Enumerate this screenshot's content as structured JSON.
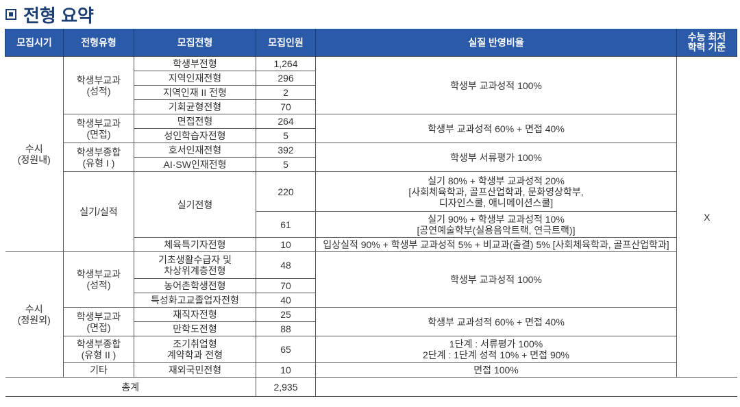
{
  "title": "전형 요약",
  "headers": [
    "모집시기",
    "전형유형",
    "모집전형",
    "모집인원",
    "실질 반영비율",
    "수능 최저\n학력 기준"
  ],
  "suneung": "X",
  "rows": {
    "p1": "수시\n(정원내)",
    "p2": "수시\n(정원외)",
    "t1": "학생부교과\n(성적)",
    "t2": "학생부교과\n(면접)",
    "t3": "학생부종합\n(유형 I )",
    "t4": "실기/실적",
    "t5": "학생부교과\n(성적)",
    "t6": "학생부교과\n(면접)",
    "t7": "학생부종합\n(유형 II )",
    "t8": "기타",
    "n1": "학생부전형",
    "c1": "1,264",
    "n2": "지역인재전형",
    "c2": "296",
    "n3": "지역인재 II 전형",
    "c3": "2",
    "n4": "기회균형전형",
    "c4": "70",
    "r1": "학생부 교과성적 100%",
    "n5": "면접전형",
    "c5": "264",
    "n6": "성인학습자전형",
    "c6": "5",
    "r2": "학생부 교과성적 60% + 면접 40%",
    "n7": "호서인재전형",
    "c7": "392",
    "n8": "AI·SW인재전형",
    "c8": "5",
    "r3": "학생부 서류평가 100%",
    "n9": "실기전형",
    "c9": "220",
    "r4": "실기 80% + 학생부 교과성적 20%\n[사회체육학과, 골프산업학과, 문화영상학부,\n디자인스쿨, 애니메이션스쿨]",
    "c10": "61",
    "r5": "실기 90% + 학생부 교과성적 10%\n[공연예술학부(실용음악트랙, 연극트랙)]",
    "n11": "체육특기자전형",
    "c11": "10",
    "r6": "입상실적 90% + 학생부 교과성적 5% + 비교과(출결) 5% [사회체육학과, 골프산업학과]",
    "n12": "기초생활수급자 및\n차상위계층전형",
    "c12": "48",
    "n13": "농어촌학생전형",
    "c13": "70",
    "n14": "특성화고교졸업자전형",
    "c14": "40",
    "r7": "학생부 교과성적 100%",
    "n15": "재직자전형",
    "c15": "25",
    "n16": "만학도전형",
    "c16": "88",
    "r8": "학생부 교과성적 60% + 면접 40%",
    "n17": "조기취업형\n계약학과 전형",
    "c17": "65",
    "r9": "1단계 : 서류평가 100%\n2단계 : 1단계 성적 10% + 면접 90%",
    "n18": "재외국민전형",
    "c18": "10",
    "r10": "면접 100%",
    "total_label": "총계",
    "total": "2,935"
  }
}
